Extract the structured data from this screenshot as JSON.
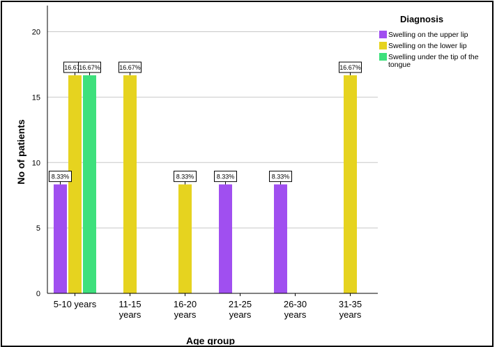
{
  "chart_data": {
    "type": "bar",
    "xlabel": "Age group",
    "ylabel": "No of patients",
    "ylim": [
      0,
      22
    ],
    "yticks": [
      0,
      5,
      10,
      15,
      20
    ],
    "grid": "horizontal",
    "legend_position": "top-right",
    "categories": [
      [
        "5-10 years"
      ],
      [
        "11-15",
        "years"
      ],
      [
        "16-20",
        "years"
      ],
      [
        "21-25",
        "years"
      ],
      [
        "26-30",
        "years"
      ],
      [
        "31-35",
        "years"
      ]
    ],
    "legend": {
      "title": "Diagnosis",
      "entries": [
        {
          "label_lines": [
            "Swelling on the upper lip"
          ]
        },
        {
          "label_lines": [
            "Swelling on the lower lip"
          ]
        },
        {
          "label_lines": [
            "Swelling under the tip of the",
            "tongue"
          ]
        }
      ]
    },
    "series": [
      {
        "name": "Swelling on the upper lip",
        "color": "#a04ff0",
        "values": [
          8.33,
          null,
          null,
          8.33,
          8.33,
          null
        ],
        "labels": [
          "8.33%",
          null,
          null,
          "8.33%",
          "8.33%",
          null
        ]
      },
      {
        "name": "Swelling on the lower lip",
        "color": "#e6d31f",
        "values": [
          16.67,
          16.67,
          8.33,
          null,
          null,
          16.67
        ],
        "labels": [
          "16.67%",
          "16.67%",
          "8.33%",
          null,
          null,
          "16.67%"
        ]
      },
      {
        "name": "Swelling under the tip of the tongue",
        "color": "#3ee07c",
        "values": [
          16.67,
          null,
          null,
          null,
          null,
          null
        ],
        "labels": [
          "16.67%",
          null,
          null,
          null,
          null,
          null
        ]
      }
    ]
  }
}
